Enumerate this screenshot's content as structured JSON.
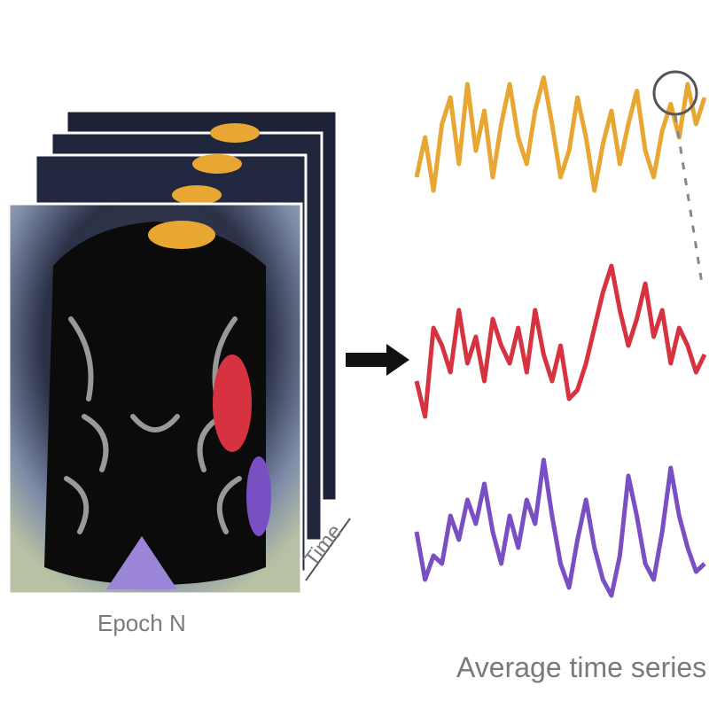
{
  "labels": {
    "epoch": "Epoch N",
    "time": "Time",
    "average_time_series": "Average time series"
  },
  "colors": {
    "background": "#ffffff",
    "brain": "#0b0b0b",
    "orange_region": "#e8a632",
    "red_region": "#d6323f",
    "purple_region": "#7a4fc4",
    "arrow": "#111111",
    "label_text": "#7a7a7a"
  },
  "regions": [
    {
      "name": "orange-region",
      "color": "#e8a632"
    },
    {
      "name": "red-region",
      "color": "#d6323f"
    },
    {
      "name": "purple-region",
      "color": "#7a4fc4"
    }
  ],
  "time_series": [
    {
      "name": "orange-series",
      "color": "#e8a632",
      "values": [
        0.2,
        0.5,
        0.1,
        0.6,
        0.8,
        0.3,
        0.9,
        0.4,
        0.7,
        0.2,
        0.6,
        0.9,
        0.5,
        0.3,
        0.7,
        0.95,
        0.6,
        0.2,
        0.4,
        0.8,
        0.5,
        0.1,
        0.45,
        0.7,
        0.3,
        0.6,
        0.85,
        0.4,
        0.2,
        0.55,
        0.75,
        0.5,
        0.9,
        0.6,
        0.8
      ]
    },
    {
      "name": "red-series",
      "color": "#d6323f",
      "values": [
        0.3,
        0.1,
        0.6,
        0.5,
        0.35,
        0.7,
        0.4,
        0.55,
        0.3,
        0.65,
        0.5,
        0.4,
        0.6,
        0.35,
        0.7,
        0.45,
        0.3,
        0.5,
        0.2,
        0.25,
        0.4,
        0.6,
        0.8,
        0.95,
        0.7,
        0.5,
        0.65,
        0.85,
        0.55,
        0.7,
        0.4,
        0.6,
        0.5,
        0.35,
        0.45
      ]
    },
    {
      "name": "purple-series",
      "color": "#7a4fc4",
      "values": [
        0.5,
        0.2,
        0.35,
        0.3,
        0.6,
        0.45,
        0.7,
        0.55,
        0.8,
        0.5,
        0.3,
        0.6,
        0.4,
        0.7,
        0.55,
        0.95,
        0.6,
        0.3,
        0.15,
        0.45,
        0.7,
        0.4,
        0.2,
        0.1,
        0.35,
        0.85,
        0.6,
        0.3,
        0.2,
        0.5,
        0.9,
        0.6,
        0.4,
        0.25,
        0.3
      ]
    }
  ]
}
